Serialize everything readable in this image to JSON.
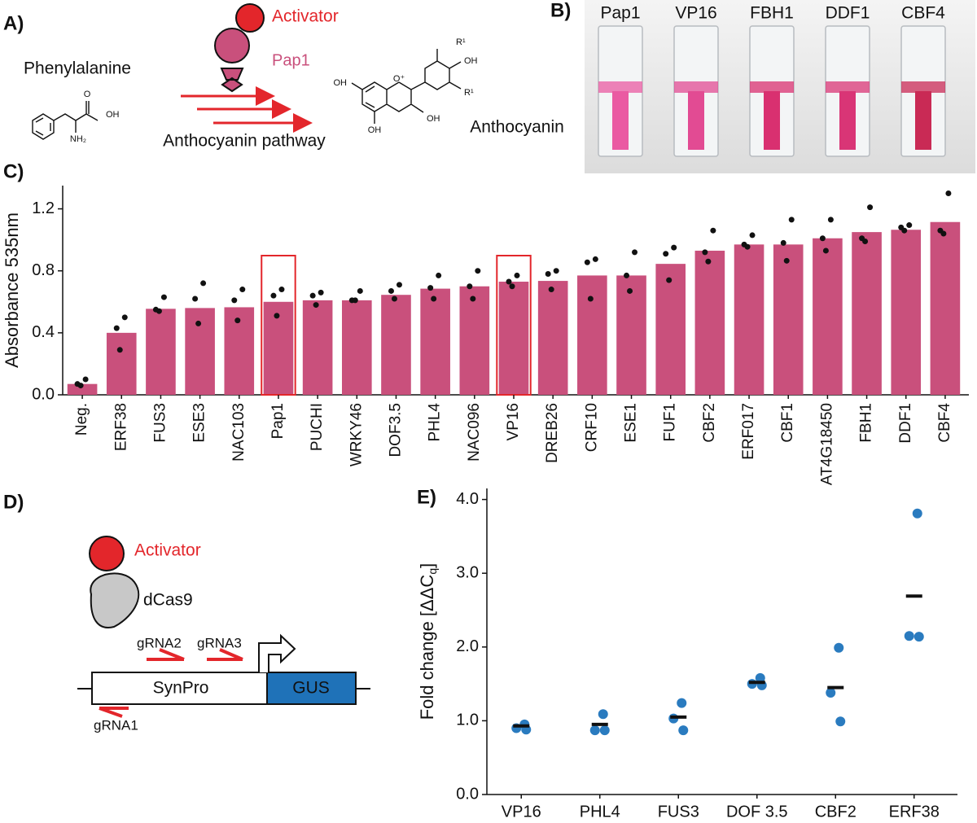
{
  "panel_a": {
    "label": "A)",
    "phenylalanine": "Phenylalanine",
    "activator": "Activator",
    "pap1": "Pap1",
    "pathway": "Anthocyanin pathway",
    "anthocyanin": "Anthocyanin",
    "phe_atoms": [
      "O",
      "OH",
      "NH₂"
    ],
    "antho_atoms": [
      "R¹",
      "OH",
      "R¹",
      "O⁺",
      "OH",
      "OH",
      "OH"
    ]
  },
  "panel_b": {
    "label": "B)",
    "samples": [
      "Pap1",
      "VP16",
      "FBH1",
      "DDF1",
      "CBF4"
    ],
    "colors": [
      "#ea5aa2",
      "#e24b93",
      "#d93070",
      "#d93576",
      "#c92a55"
    ]
  },
  "panel_d": {
    "label": "D)",
    "activator": "Activator",
    "dcas9": "dCas9",
    "grna2": "gRNA2",
    "grna3": "gRNA3",
    "synpro": "SynPro",
    "gus": "GUS",
    "grna1": "gRNA1"
  },
  "chart_data": [
    {
      "type": "bar",
      "label": "C)",
      "y_label": "Absorbance 535nm",
      "categories": [
        "Neg.",
        "ERF38",
        "FUS3",
        "ESE3",
        "NAC103",
        "Pap1",
        "PUCHI",
        "WRKY46",
        "DOF3.5",
        "PHL4",
        "NAC096",
        "VP16",
        "DREB26",
        "CRF10",
        "ESE1",
        "FUF1",
        "CBF2",
        "ERF017",
        "CBF1",
        "AT4G18450",
        "FBH1",
        "DDF1",
        "CBF4"
      ],
      "values": [
        0.07,
        0.4,
        0.555,
        0.56,
        0.565,
        0.6,
        0.61,
        0.61,
        0.645,
        0.685,
        0.7,
        0.73,
        0.735,
        0.77,
        0.77,
        0.845,
        0.93,
        0.97,
        0.97,
        1.01,
        1.05,
        1.065,
        1.115
      ],
      "points": [
        [
          0.1,
          0.07,
          0.06
        ],
        [
          0.5,
          0.43,
          0.29
        ],
        [
          0.63,
          0.55,
          0.54
        ],
        [
          0.72,
          0.62,
          0.46
        ],
        [
          0.68,
          0.61,
          0.48
        ],
        [
          0.68,
          0.64,
          0.51
        ],
        [
          0.66,
          0.64,
          0.58
        ],
        [
          0.67,
          0.61,
          0.61
        ],
        [
          0.71,
          0.67,
          0.62
        ],
        [
          0.77,
          0.69,
          0.62
        ],
        [
          0.8,
          0.7,
          0.62
        ],
        [
          0.77,
          0.73,
          0.7
        ],
        [
          0.8,
          0.78,
          0.68
        ],
        [
          0.875,
          0.855,
          0.62
        ],
        [
          0.92,
          0.77,
          0.67
        ],
        [
          0.95,
          0.91,
          0.74
        ],
        [
          1.06,
          0.92,
          0.86
        ],
        [
          1.03,
          0.97,
          0.955
        ],
        [
          1.13,
          0.98,
          0.865
        ],
        [
          1.13,
          1.01,
          0.93
        ],
        [
          1.21,
          1.01,
          0.99
        ],
        [
          1.095,
          1.08,
          1.06
        ],
        [
          1.3,
          1.06,
          1.04
        ]
      ],
      "color": "#c9507c",
      "highlight": [
        5,
        11
      ],
      "ylim": [
        0,
        1.35
      ],
      "yticks": [
        {
          "value": 0,
          "label": "0.0"
        },
        0.4,
        0.8,
        1.2
      ]
    },
    {
      "type": "dot",
      "label": "E)",
      "y_label": {
        "text": "Fold change [ΔΔC",
        "subscript": "q",
        "close": "]"
      },
      "categories": [
        "VP16",
        "PHL4",
        "FUS3",
        "DOF 3.5",
        "CBF2",
        "ERF38"
      ],
      "values": [
        0.93,
        0.95,
        1.05,
        1.52,
        1.45,
        2.69
      ],
      "points": [
        [
          0.95,
          0.9,
          0.88
        ],
        [
          1.09,
          0.87,
          0.87
        ],
        [
          1.24,
          1.03,
          0.87
        ],
        [
          1.58,
          1.5,
          1.48
        ],
        [
          1.99,
          1.38,
          0.99
        ],
        [
          3.81,
          2.15,
          2.14
        ]
      ],
      "color": "#2a7bbf",
      "ylim": [
        0,
        4.15
      ],
      "yticks": [
        {
          "value": 0,
          "label": "0.0"
        },
        {
          "value": 1,
          "label": "1.0"
        },
        {
          "value": 2,
          "label": "2.0"
        },
        {
          "value": 3,
          "label": "3.0"
        },
        {
          "value": 4,
          "label": "4.0"
        }
      ]
    }
  ]
}
